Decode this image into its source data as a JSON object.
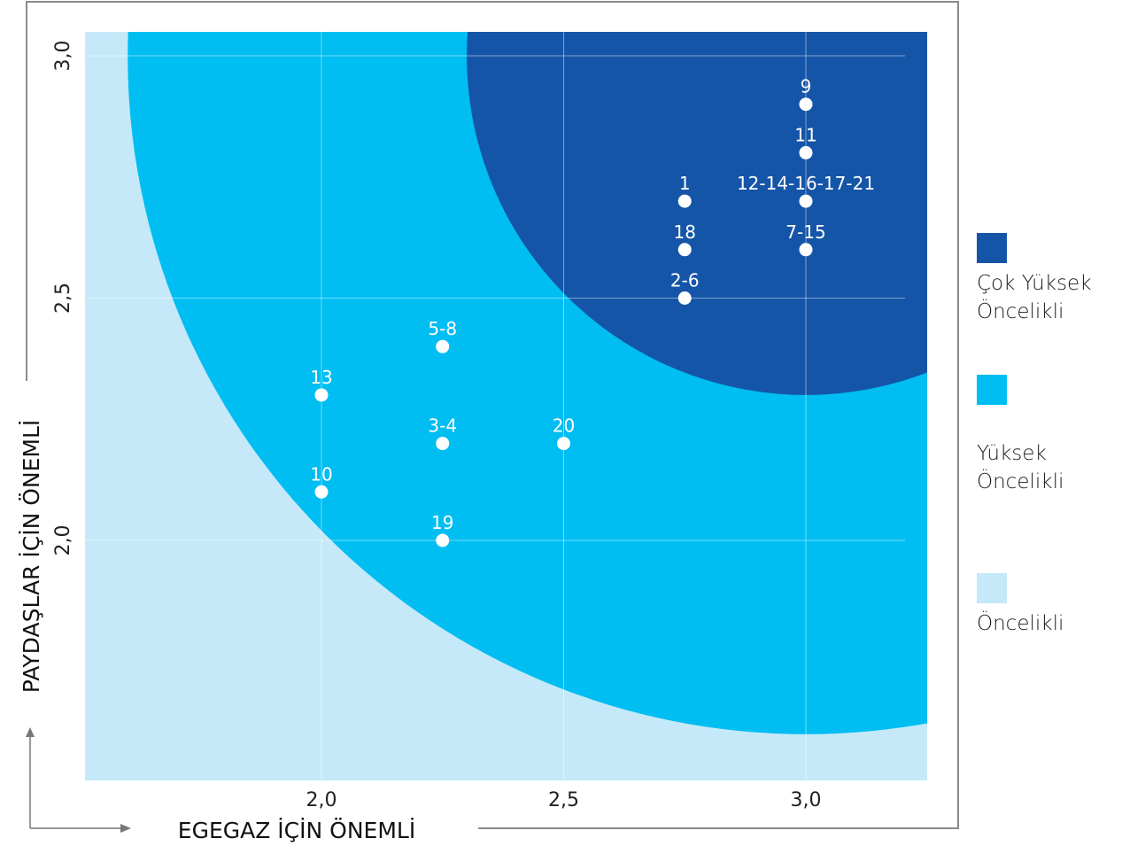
{
  "chart_data": {
    "type": "scatter",
    "title": "",
    "xlabel": "EGEGAZ İÇİN ÖNEMLİ",
    "ylabel": "PAYDAŞLAR İÇİN ÖNEMLİ",
    "xlim": [
      1.5,
      3.25
    ],
    "ylim": [
      1.55,
      3.05
    ],
    "x_ticks": [
      {
        "value": 2.0,
        "label": "2,0"
      },
      {
        "value": 2.5,
        "label": "2,5"
      },
      {
        "value": 3.0,
        "label": "3,0"
      }
    ],
    "y_ticks": [
      {
        "value": 2.0,
        "label": "2,0"
      },
      {
        "value": 2.5,
        "label": "2,5"
      },
      {
        "value": 3.0,
        "label": "3,0"
      }
    ],
    "grid": true,
    "legend_position": "right",
    "points": [
      {
        "label": "9",
        "x": 3.0,
        "y": 2.9
      },
      {
        "label": "11",
        "x": 3.0,
        "y": 2.8
      },
      {
        "label": "12-14-16-17-21",
        "x": 3.0,
        "y": 2.7
      },
      {
        "label": "7-15",
        "x": 3.0,
        "y": 2.6
      },
      {
        "label": "1",
        "x": 2.75,
        "y": 2.7
      },
      {
        "label": "18",
        "x": 2.75,
        "y": 2.6
      },
      {
        "label": "2-6",
        "x": 2.75,
        "y": 2.5
      },
      {
        "label": "5-8",
        "x": 2.25,
        "y": 2.4
      },
      {
        "label": "3-4",
        "x": 2.25,
        "y": 2.2
      },
      {
        "label": "19",
        "x": 2.25,
        "y": 2.0
      },
      {
        "label": "20",
        "x": 2.5,
        "y": 2.2
      },
      {
        "label": "13",
        "x": 2.0,
        "y": 2.3
      },
      {
        "label": "10",
        "x": 2.0,
        "y": 2.1
      }
    ],
    "zones": [
      {
        "name": "Öncelikli",
        "color": "#c5e9f8",
        "radius": null
      },
      {
        "name": "Yüksek Öncelikli",
        "color": "#00bdf2",
        "radius": 1.4
      },
      {
        "name": "Çok Yüksek Öncelikli",
        "color": "#1555a8",
        "radius": 0.7
      }
    ],
    "zone_center": {
      "x": 3.0,
      "y": 3.0
    }
  },
  "legend": [
    {
      "lines": [
        "Çok Yüksek",
        "Öncelikli"
      ],
      "color": "#1555a8"
    },
    {
      "lines": [
        "Yüksek",
        "Öncelikli"
      ],
      "color": "#00bdf2"
    },
    {
      "lines": [
        "Öncelikli"
      ],
      "color": "#c5e9f8"
    }
  ],
  "colors": {
    "point": "#ffffff",
    "point_label": "#ffffff",
    "gridline": "#ffffff",
    "axis_text": "#222222",
    "frame": "#8a8a8a"
  }
}
